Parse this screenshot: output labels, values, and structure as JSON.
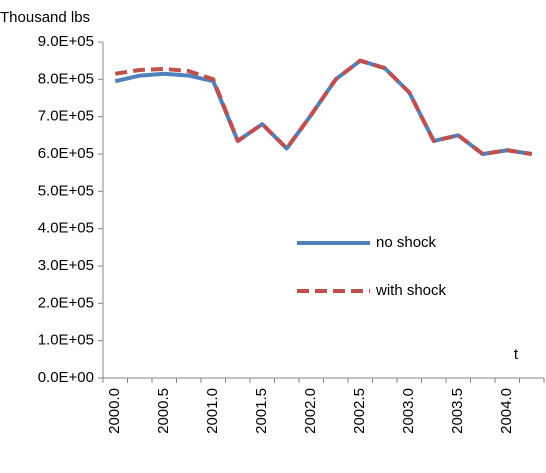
{
  "chart_data": {
    "type": "line",
    "y_label": "Thousand lbs",
    "x_label": "t",
    "categories": [
      "2000.0",
      null,
      "2000.5",
      null,
      "2001.0",
      null,
      "2001.5",
      null,
      "2002.0",
      null,
      "2002.5",
      null,
      "2003.0",
      null,
      "2003.5",
      null,
      "2004.0",
      null
    ],
    "series": [
      {
        "name": "no shock",
        "color": "#4f81bd",
        "dash": false,
        "values": [
          795000,
          810000,
          815000,
          810000,
          795000,
          635000,
          680000,
          615000,
          705000,
          800000,
          850000,
          830000,
          765000,
          635000,
          650000,
          600000,
          610000,
          600000
        ]
      },
      {
        "name": "with shock",
        "color": "#c0504d",
        "dash": true,
        "values": [
          815000,
          825000,
          828000,
          822000,
          800000,
          635000,
          680000,
          615000,
          705000,
          800000,
          850000,
          830000,
          765000,
          635000,
          650000,
          600000,
          610000,
          600000
        ]
      }
    ],
    "ylim": [
      0,
      900000
    ],
    "yticks": [
      {
        "value": 0,
        "label": "0.0E+00"
      },
      {
        "value": 100000,
        "label": "1.0E+05"
      },
      {
        "value": 200000,
        "label": "2.0E+05"
      },
      {
        "value": 300000,
        "label": "3.0E+05"
      },
      {
        "value": 400000,
        "label": "4.0E+05"
      },
      {
        "value": 500000,
        "label": "5.0E+05"
      },
      {
        "value": 600000,
        "label": "6.0E+05"
      },
      {
        "value": 700000,
        "label": "7.0E+05"
      },
      {
        "value": 800000,
        "label": "8.0E+05"
      },
      {
        "value": 900000,
        "label": "9.0E+05"
      }
    ],
    "grid": false
  }
}
